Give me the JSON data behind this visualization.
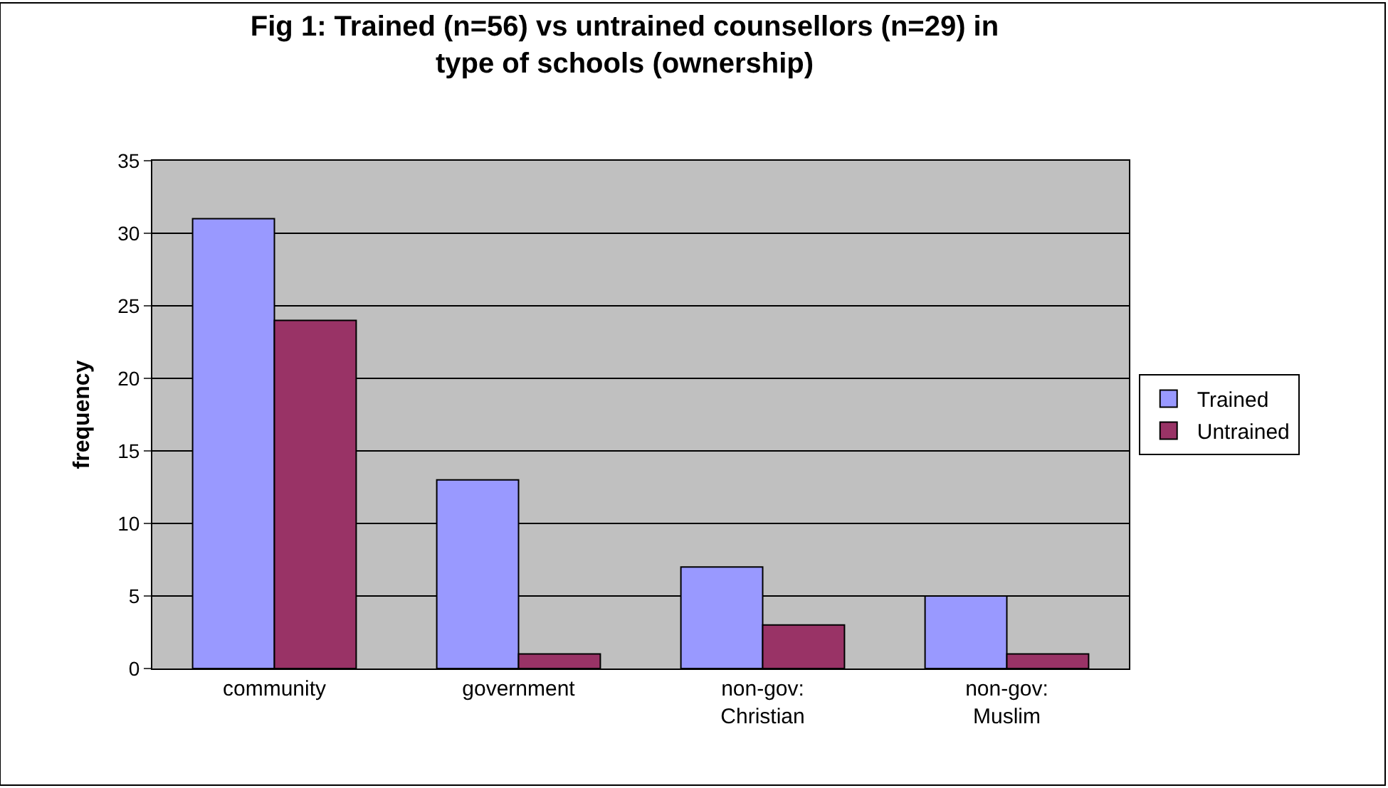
{
  "chart_data": {
    "type": "bar",
    "title": "Fig 1: Trained (n=56) vs untrained counsellors (n=29) in type of schools (ownership)",
    "ylabel": "frequency",
    "categories": [
      "community",
      "government",
      "non-gov: Christian",
      "non-gov: Muslim"
    ],
    "series": [
      {
        "name": "Trained",
        "color": "#9999ff",
        "values": [
          31,
          13,
          7,
          5
        ]
      },
      {
        "name": "Untrained",
        "color": "#993366",
        "values": [
          24,
          1,
          3,
          1
        ]
      }
    ],
    "ylim": [
      0,
      35
    ],
    "yticks": [
      0,
      5,
      10,
      15,
      20,
      25,
      30,
      35
    ],
    "grid": "y",
    "legend": "right"
  }
}
